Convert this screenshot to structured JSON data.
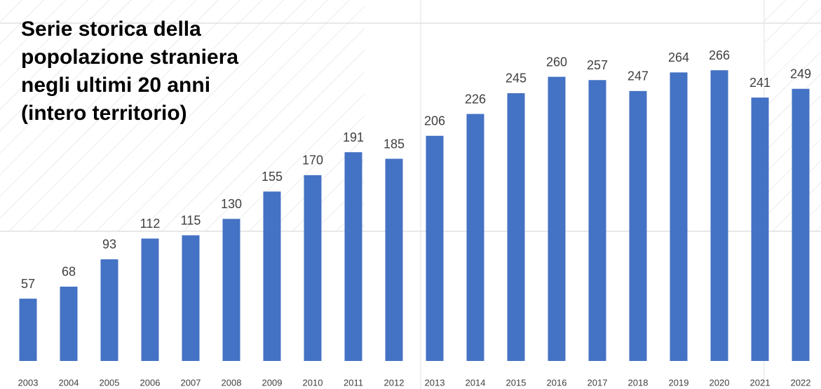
{
  "chart_data": {
    "type": "bar",
    "title": "Serie storica della popolazione straniera negli ultimi 20 anni (intero territorio)",
    "categories": [
      "2003",
      "2004",
      "2005",
      "2006",
      "2007",
      "2008",
      "2009",
      "2010",
      "2011",
      "2012",
      "2013",
      "2014",
      "2015",
      "2016",
      "2017",
      "2018",
      "2019",
      "2020",
      "2021",
      "2022"
    ],
    "values": [
      57,
      68,
      93,
      112,
      115,
      130,
      155,
      170,
      191,
      185,
      206,
      226,
      245,
      260,
      257,
      247,
      264,
      266,
      241,
      249
    ],
    "color": "#4472c4",
    "ylim": [
      0,
      320
    ]
  }
}
